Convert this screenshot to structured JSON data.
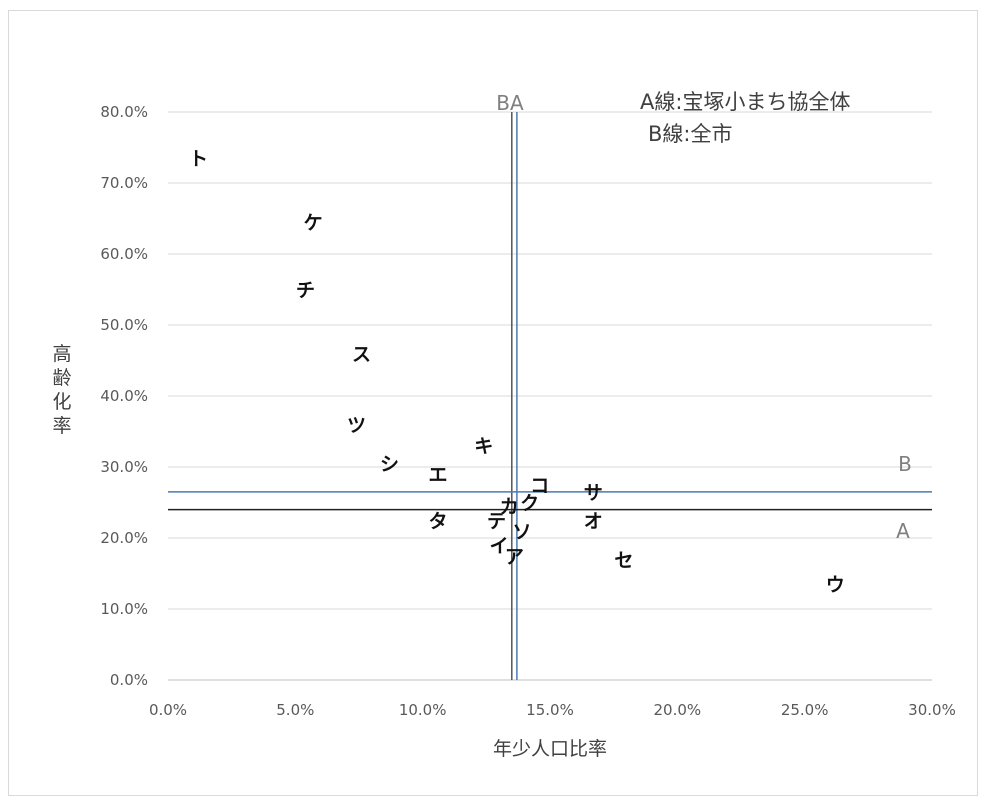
{
  "chart_data": {
    "type": "scatter",
    "title": "",
    "xlabel": "年少人口比率",
    "ylabel": "高齢化率",
    "xlim": [
      0,
      30
    ],
    "ylim": [
      0,
      80
    ],
    "x_tick_step": 5,
    "y_tick_step": 10,
    "x_ticks": [
      "0.0%",
      "5.0%",
      "10.0%",
      "15.0%",
      "20.0%",
      "25.0%",
      "30.0%"
    ],
    "y_ticks": [
      "0.0%",
      "10.0%",
      "20.0%",
      "30.0%",
      "40.0%",
      "50.0%",
      "60.0%",
      "70.0%",
      "80.0%"
    ],
    "grid": "horizontal",
    "points": [
      {
        "label": "ト",
        "x": 1.2,
        "y": 73.5
      },
      {
        "label": "ケ",
        "x": 5.7,
        "y": 64.5
      },
      {
        "label": "チ",
        "x": 5.4,
        "y": 55.0
      },
      {
        "label": "ス",
        "x": 7.6,
        "y": 46.0
      },
      {
        "label": "ツ",
        "x": 7.4,
        "y": 36.0
      },
      {
        "label": "キ",
        "x": 12.4,
        "y": 33.0
      },
      {
        "label": "シ",
        "x": 8.7,
        "y": 30.5
      },
      {
        "label": "エ",
        "x": 10.6,
        "y": 29.0
      },
      {
        "label": "コ",
        "x": 14.6,
        "y": 27.5
      },
      {
        "label": "サ",
        "x": 16.7,
        "y": 26.5
      },
      {
        "label": "カ",
        "x": 13.4,
        "y": 24.5
      },
      {
        "label": "ク",
        "x": 14.2,
        "y": 25.0
      },
      {
        "label": "タ",
        "x": 10.6,
        "y": 22.5
      },
      {
        "label": "テ",
        "x": 12.9,
        "y": 22.5
      },
      {
        "label": "オ",
        "x": 16.7,
        "y": 22.5
      },
      {
        "label": "ソ",
        "x": 13.9,
        "y": 21.0
      },
      {
        "label": "イ",
        "x": 13.0,
        "y": 19.0
      },
      {
        "label": "ア",
        "x": 13.6,
        "y": 17.5
      },
      {
        "label": "セ",
        "x": 17.9,
        "y": 17.0
      },
      {
        "label": "ウ",
        "x": 26.2,
        "y": 13.5
      }
    ],
    "reference_lines": [
      {
        "name": "A",
        "orientation": "vertical",
        "x": 13.5,
        "color": "#555555"
      },
      {
        "name": "B",
        "orientation": "vertical",
        "x": 13.7,
        "color": "#4a7ab5"
      },
      {
        "name": "A",
        "orientation": "horizontal",
        "y": 24.0,
        "color": "#222222"
      },
      {
        "name": "B",
        "orientation": "horizontal",
        "y": 26.5,
        "color": "#4a7ab5"
      }
    ],
    "top_line_label": "BA",
    "right_line_labels": {
      "B": "B",
      "A": "A"
    },
    "legend": [
      "A線:宝塚小まち協全体",
      "B線:全市"
    ]
  }
}
